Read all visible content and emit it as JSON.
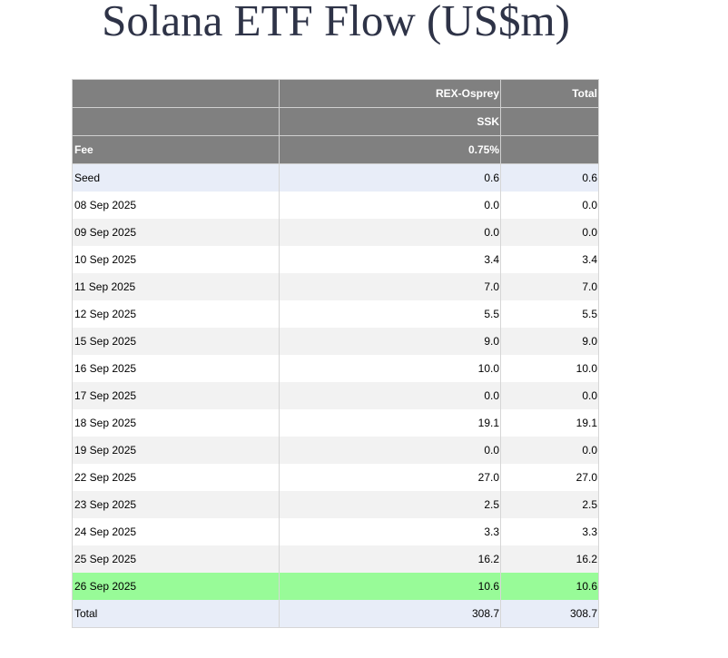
{
  "title": "Solana ETF Flow (US$m)",
  "table": {
    "header_rows": [
      [
        "",
        "REX-Osprey",
        "Total"
      ],
      [
        "",
        "SSK",
        ""
      ],
      [
        "Fee",
        "0.75%",
        ""
      ]
    ],
    "rows": [
      {
        "date": "Seed",
        "rex": "0.6",
        "total": "0.6"
      },
      {
        "date": "08 Sep 2025",
        "rex": "0.0",
        "total": "0.0"
      },
      {
        "date": "09 Sep 2025",
        "rex": "0.0",
        "total": "0.0"
      },
      {
        "date": "10 Sep 2025",
        "rex": "3.4",
        "total": "3.4"
      },
      {
        "date": "11 Sep 2025",
        "rex": "7.0",
        "total": "7.0"
      },
      {
        "date": "12 Sep 2025",
        "rex": "5.5",
        "total": "5.5"
      },
      {
        "date": "15 Sep 2025",
        "rex": "9.0",
        "total": "9.0"
      },
      {
        "date": "16 Sep 2025",
        "rex": "10.0",
        "total": "10.0"
      },
      {
        "date": "17 Sep 2025",
        "rex": "0.0",
        "total": "0.0"
      },
      {
        "date": "18 Sep 2025",
        "rex": "19.1",
        "total": "19.1"
      },
      {
        "date": "19 Sep 2025",
        "rex": "0.0",
        "total": "0.0"
      },
      {
        "date": "22 Sep 2025",
        "rex": "27.0",
        "total": "27.0"
      },
      {
        "date": "23 Sep 2025",
        "rex": "2.5",
        "total": "2.5"
      },
      {
        "date": "24 Sep 2025",
        "rex": "3.3",
        "total": "3.3"
      },
      {
        "date": "25 Sep 2025",
        "rex": "16.2",
        "total": "16.2"
      },
      {
        "date": "26 Sep 2025",
        "rex": "10.6",
        "total": "10.6"
      }
    ],
    "total_row": {
      "label": "Total",
      "rex": "308.7",
      "total": "308.7"
    }
  },
  "colors": {
    "header_bg": "#808080",
    "highlight_row": "#98fb98",
    "seed_total_row": "#e8edf8",
    "striped_row": "#f2f2f2"
  }
}
